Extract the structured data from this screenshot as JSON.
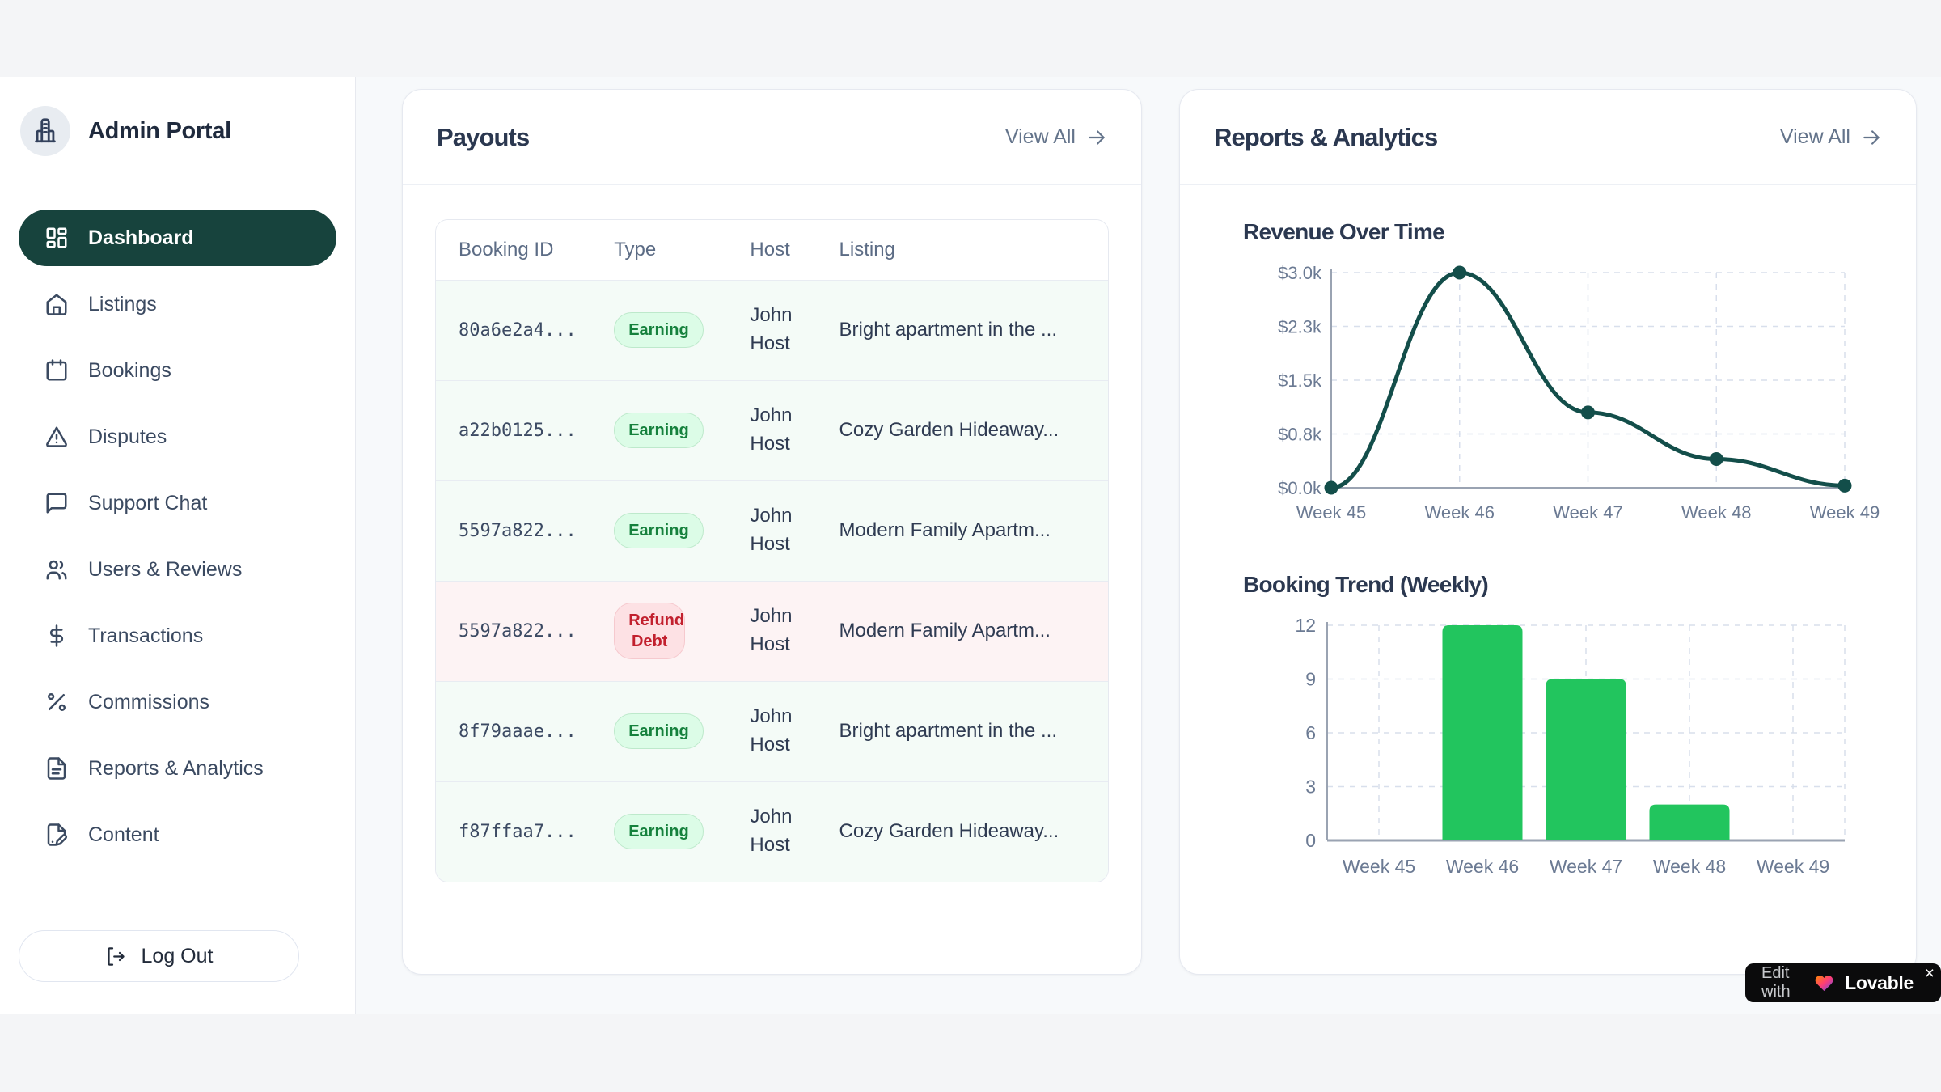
{
  "sidebar": {
    "brand": "Admin Portal",
    "items": [
      {
        "label": "Dashboard",
        "icon": "dashboard",
        "active": true
      },
      {
        "label": "Listings",
        "icon": "home",
        "active": false
      },
      {
        "label": "Bookings",
        "icon": "calendar",
        "active": false
      },
      {
        "label": "Disputes",
        "icon": "alert",
        "active": false
      },
      {
        "label": "Support Chat",
        "icon": "chat",
        "active": false
      },
      {
        "label": "Users & Reviews",
        "icon": "users",
        "active": false
      },
      {
        "label": "Transactions",
        "icon": "dollar",
        "active": false
      },
      {
        "label": "Commissions",
        "icon": "percent",
        "active": false
      },
      {
        "label": "Reports & Analytics",
        "icon": "file",
        "active": false
      },
      {
        "label": "Content",
        "icon": "file-edit",
        "active": false
      }
    ],
    "logout_label": "Log Out"
  },
  "payouts": {
    "title": "Payouts",
    "view_all": "View All",
    "columns": [
      "Booking ID",
      "Type",
      "Host",
      "Listing"
    ],
    "rows": [
      {
        "booking_id": "80a6e2a4...",
        "type": "Earning",
        "variant": "earning",
        "host": "John Host",
        "listing": "Bright apartment in the ..."
      },
      {
        "booking_id": "a22b0125...",
        "type": "Earning",
        "variant": "earning",
        "host": "John Host",
        "listing": "Cozy Garden Hideaway..."
      },
      {
        "booking_id": "5597a822...",
        "type": "Earning",
        "variant": "earning",
        "host": "John Host",
        "listing": "Modern Family Apartm..."
      },
      {
        "booking_id": "5597a822...",
        "type": "Refund Debt",
        "variant": "refund",
        "host": "John Host",
        "listing": "Modern Family Apartm..."
      },
      {
        "booking_id": "8f79aaae...",
        "type": "Earning",
        "variant": "earning",
        "host": "John Host",
        "listing": "Bright apartment in the ..."
      },
      {
        "booking_id": "f87ffaa7...",
        "type": "Earning",
        "variant": "earning",
        "host": "John Host",
        "listing": "Cozy Garden Hideaway..."
      }
    ]
  },
  "reports": {
    "title": "Reports & Analytics",
    "view_all": "View All"
  },
  "chart_data": [
    {
      "type": "line",
      "title": "Revenue Over Time",
      "categories": [
        "Week 45",
        "Week 46",
        "Week 47",
        "Week 48",
        "Week 49"
      ],
      "values": [
        0,
        3000,
        1050,
        400,
        30
      ],
      "y_ticks": [
        0,
        750,
        1500,
        2250,
        3000
      ],
      "y_tick_labels": [
        "$0.0k",
        "$0.8k",
        "$1.5k",
        "$2.3k",
        "$3.0k"
      ],
      "ylim": [
        0,
        3000
      ],
      "xlabel": "",
      "ylabel": "",
      "grid": "dashed",
      "legend": "none",
      "line_color": "#134e4a"
    },
    {
      "type": "bar",
      "title": "Booking Trend (Weekly)",
      "categories": [
        "Week 45",
        "Week 46",
        "Week 47",
        "Week 48",
        "Week 49"
      ],
      "values": [
        0,
        12,
        9,
        2,
        0
      ],
      "y_ticks": [
        0,
        3,
        6,
        9,
        12
      ],
      "y_tick_labels": [
        "0",
        "3",
        "6",
        "9",
        "12"
      ],
      "ylim": [
        0,
        12
      ],
      "xlabel": "",
      "ylabel": "",
      "grid": "dashed",
      "legend": "none",
      "bar_color": "#22c55e"
    }
  ],
  "badge": {
    "prefix": "Edit with",
    "brand": "Lovable",
    "close": "×"
  },
  "colors": {
    "active_nav": "#17433d",
    "line": "#134e4a",
    "bar": "#22c55e",
    "earning_bg": "#dcfce7",
    "earning_text": "#16813d",
    "refund_bg": "#fde1e4",
    "refund_text": "#c2202e",
    "axis_text": "#6b7a93",
    "grid_line": "#d8dfec"
  }
}
